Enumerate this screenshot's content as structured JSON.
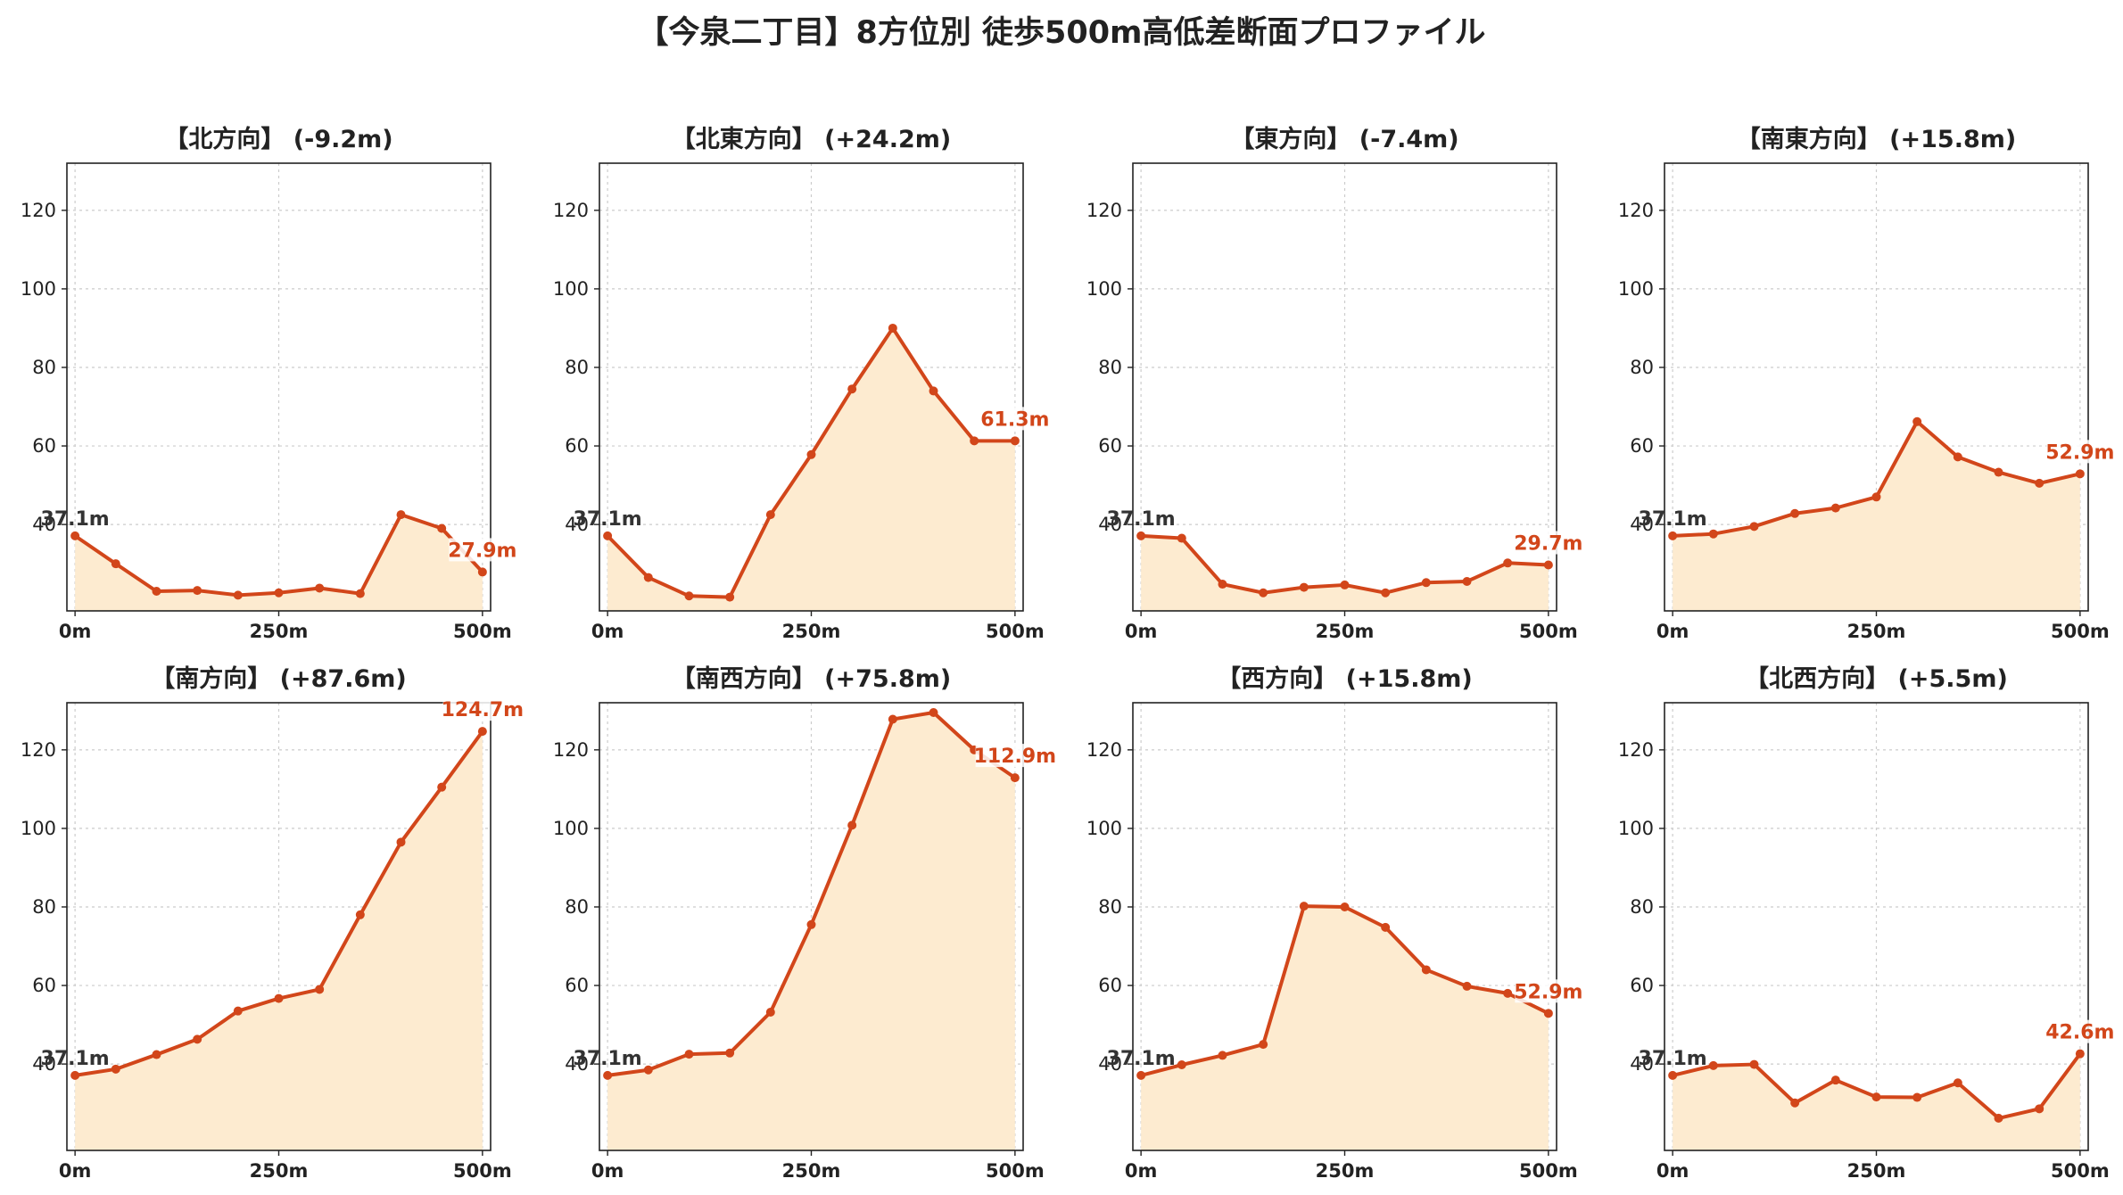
{
  "suptitle": "【今泉二丁目】8方位別 徒歩500m高低差断面プロファイル",
  "colors": {
    "line": "#d2461a",
    "fill": "#fdebd0",
    "start_label": "#333333",
    "end_label": "#d2461a",
    "grid": "#cccccc"
  },
  "chart_data": [
    {
      "type": "area",
      "title": "【北方向】 (-9.2m)",
      "x_ticks": [
        "0m",
        "250m",
        "500m"
      ],
      "y_ticks": [
        "40",
        "60",
        "80",
        "100",
        "120"
      ],
      "ylim": [
        18,
        132
      ],
      "xlim": [
        -10,
        510
      ],
      "grid": true,
      "x": [
        0,
        50,
        100,
        150,
        200,
        250,
        300,
        350,
        400,
        450,
        500
      ],
      "y": [
        37.1,
        30.0,
        23.0,
        23.2,
        22.0,
        22.6,
        23.8,
        22.4,
        42.5,
        39.0,
        27.9
      ],
      "start_label": "37.1m",
      "end_label": "27.9m"
    },
    {
      "type": "area",
      "title": "【北東方向】 (+24.2m)",
      "x_ticks": [
        "0m",
        "250m",
        "500m"
      ],
      "y_ticks": [
        "40",
        "60",
        "80",
        "100",
        "120"
      ],
      "ylim": [
        18,
        132
      ],
      "xlim": [
        -10,
        510
      ],
      "grid": true,
      "x": [
        0,
        50,
        100,
        150,
        200,
        250,
        300,
        350,
        400,
        450,
        500
      ],
      "y": [
        37.1,
        26.5,
        21.8,
        21.5,
        42.5,
        57.8,
        74.5,
        90.0,
        74.0,
        61.3,
        61.3
      ],
      "start_label": "37.1m",
      "end_label": "61.3m"
    },
    {
      "type": "area",
      "title": "【東方向】 (-7.4m)",
      "x_ticks": [
        "0m",
        "250m",
        "500m"
      ],
      "y_ticks": [
        "40",
        "60",
        "80",
        "100",
        "120"
      ],
      "ylim": [
        18,
        132
      ],
      "xlim": [
        -10,
        510
      ],
      "grid": true,
      "x": [
        0,
        50,
        100,
        150,
        200,
        250,
        300,
        350,
        400,
        450,
        500
      ],
      "y": [
        37.1,
        36.5,
        24.8,
        22.6,
        24.0,
        24.6,
        22.6,
        25.2,
        25.5,
        30.2,
        29.7
      ],
      "start_label": "37.1m",
      "end_label": "29.7m"
    },
    {
      "type": "area",
      "title": "【南東方向】 (+15.8m)",
      "x_ticks": [
        "0m",
        "250m",
        "500m"
      ],
      "y_ticks": [
        "40",
        "60",
        "80",
        "100",
        "120"
      ],
      "ylim": [
        18,
        132
      ],
      "xlim": [
        -10,
        510
      ],
      "grid": true,
      "x": [
        0,
        50,
        100,
        150,
        200,
        250,
        300,
        350,
        400,
        450,
        500
      ],
      "y": [
        37.1,
        37.6,
        39.5,
        42.8,
        44.2,
        47.0,
        66.2,
        57.2,
        53.3,
        50.5,
        52.9
      ],
      "start_label": "37.1m",
      "end_label": "52.9m"
    },
    {
      "type": "area",
      "title": "【南方向】 (+87.6m)",
      "x_ticks": [
        "0m",
        "250m",
        "500m"
      ],
      "y_ticks": [
        "40",
        "60",
        "80",
        "100",
        "120"
      ],
      "ylim": [
        18,
        132
      ],
      "xlim": [
        -10,
        510
      ],
      "grid": true,
      "x": [
        0,
        50,
        100,
        150,
        200,
        250,
        300,
        350,
        400,
        450,
        500
      ],
      "y": [
        37.1,
        38.7,
        42.4,
        46.3,
        53.5,
        56.7,
        59.0,
        78.0,
        96.5,
        110.5,
        124.7
      ],
      "start_label": "37.1m",
      "end_label": "124.7m"
    },
    {
      "type": "area",
      "title": "【南西方向】 (+75.8m)",
      "x_ticks": [
        "0m",
        "250m",
        "500m"
      ],
      "y_ticks": [
        "40",
        "60",
        "80",
        "100",
        "120"
      ],
      "ylim": [
        18,
        132
      ],
      "xlim": [
        -10,
        510
      ],
      "grid": true,
      "x": [
        0,
        50,
        100,
        150,
        200,
        250,
        300,
        350,
        400,
        450,
        500
      ],
      "y": [
        37.1,
        38.5,
        42.5,
        42.8,
        53.2,
        75.5,
        100.8,
        127.8,
        129.5,
        120.0,
        112.9
      ],
      "start_label": "37.1m",
      "end_label": "112.9m"
    },
    {
      "type": "area",
      "title": "【西方向】 (+15.8m)",
      "x_ticks": [
        "0m",
        "250m",
        "500m"
      ],
      "y_ticks": [
        "40",
        "60",
        "80",
        "100",
        "120"
      ],
      "ylim": [
        18,
        132
      ],
      "xlim": [
        -10,
        510
      ],
      "grid": true,
      "x": [
        0,
        50,
        100,
        150,
        200,
        250,
        300,
        350,
        400,
        450,
        500
      ],
      "y": [
        37.1,
        39.8,
        42.2,
        45.0,
        80.2,
        80.0,
        74.8,
        64.0,
        59.8,
        58.0,
        52.9
      ],
      "start_label": "37.1m",
      "end_label": "52.9m"
    },
    {
      "type": "area",
      "title": "【北西方向】 (+5.5m)",
      "x_ticks": [
        "0m",
        "250m",
        "500m"
      ],
      "y_ticks": [
        "40",
        "60",
        "80",
        "100",
        "120"
      ],
      "ylim": [
        18,
        132
      ],
      "xlim": [
        -10,
        510
      ],
      "grid": true,
      "x": [
        0,
        50,
        100,
        150,
        200,
        250,
        300,
        350,
        400,
        450,
        500
      ],
      "y": [
        37.1,
        39.6,
        39.9,
        30.1,
        35.9,
        31.6,
        31.5,
        35.2,
        26.2,
        28.6,
        42.6
      ],
      "start_label": "37.1m",
      "end_label": "42.6m"
    }
  ]
}
